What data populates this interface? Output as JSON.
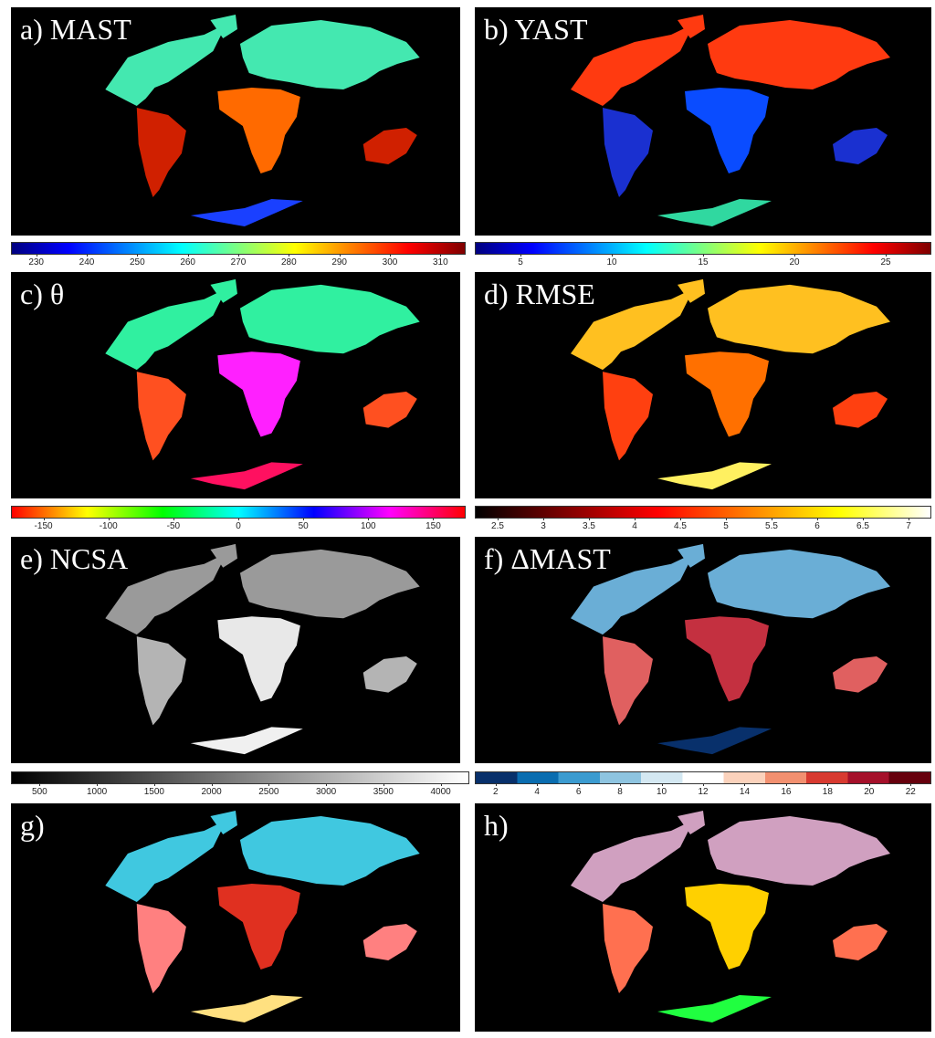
{
  "panels": [
    {
      "id": "a",
      "label": "a) MAST",
      "scheme": "jet-hot",
      "colors": {
        "north": "#44e8b0",
        "mid": "#ff6a00",
        "south": "#d02000",
        "antarctica": "#1a40ff"
      }
    },
    {
      "id": "b",
      "label": "b) YAST",
      "scheme": "jet-annual",
      "colors": {
        "north": "#ff3a10",
        "mid": "#0a4cff",
        "south": "#1a30d0",
        "antarctica": "#30d8a0"
      }
    },
    {
      "id": "c",
      "label": "c) θ",
      "scheme": "phase",
      "colors": {
        "north": "#30f0a0",
        "mid": "#ff20ff",
        "south": "#ff5020",
        "antarctica": "#ff1060"
      }
    },
    {
      "id": "d",
      "label": "d) RMSE",
      "scheme": "hot",
      "colors": {
        "north": "#ffc020",
        "mid": "#ff7000",
        "south": "#ff4010",
        "antarctica": "#fff060"
      }
    },
    {
      "id": "e",
      "label": "e) NCSA",
      "scheme": "gray",
      "colors": {
        "north": "#9a9a9a",
        "mid": "#e8e8e8",
        "south": "#b4b4b4",
        "antarctica": "#f0f0f0"
      }
    },
    {
      "id": "f",
      "label": "f) ΔMAST",
      "scheme": "diverging",
      "colors": {
        "north": "#6aaed6",
        "mid": "#c43040",
        "south": "#e06060",
        "antarctica": "#08306b"
      }
    },
    {
      "id": "g",
      "label": "g)",
      "scheme": "rgb-composite",
      "colors": {
        "north": "#40c8e0",
        "mid": "#e03020",
        "south": "#ff8080",
        "antarctica": "#ffe080"
      }
    },
    {
      "id": "h",
      "label": "h)",
      "scheme": "rgb-composite-2",
      "colors": {
        "north": "#d0a0c0",
        "mid": "#ffd000",
        "south": "#ff7050",
        "antarctica": "#20ff40"
      }
    }
  ],
  "colorbars": [
    {
      "id": "mast",
      "ticks": [
        "230",
        "240",
        "250",
        "260",
        "270",
        "280",
        "290",
        "300",
        "310"
      ],
      "stops": [
        "#00007f",
        "#0000ff",
        "#007fff",
        "#00ffff",
        "#7fff7f",
        "#ffff00",
        "#ff7f00",
        "#ff0000",
        "#7f0000"
      ]
    },
    {
      "id": "yast",
      "ticks": [
        "5",
        "10",
        "15",
        "20",
        "25"
      ],
      "stops": [
        "#00007f",
        "#0000ff",
        "#007fff",
        "#00ffff",
        "#7fff7f",
        "#ffff00",
        "#ff7f00",
        "#ff0000",
        "#7f0000"
      ]
    },
    {
      "id": "theta",
      "ticks": [
        "-150",
        "-100",
        "-50",
        "0",
        "50",
        "100",
        "150"
      ],
      "stops": [
        "#ff0000",
        "#ffff00",
        "#00ff00",
        "#00ffff",
        "#0000ff",
        "#ff00ff",
        "#ff0000"
      ]
    },
    {
      "id": "rmse",
      "ticks": [
        "2.5",
        "3",
        "3.5",
        "4",
        "4.5",
        "5",
        "5.5",
        "6",
        "6.5",
        "7"
      ],
      "stops": [
        "#000000",
        "#800000",
        "#ff0000",
        "#ff8000",
        "#ffff00",
        "#ffffff"
      ]
    },
    {
      "id": "ncsa",
      "ticks": [
        "500",
        "1000",
        "1500",
        "2000",
        "2500",
        "3000",
        "3500",
        "4000"
      ],
      "stops": [
        "#000000",
        "#ffffff"
      ]
    },
    {
      "id": "dmast",
      "ticks": [
        "2",
        "4",
        "6",
        "8",
        "10",
        "12",
        "14",
        "16",
        "18",
        "20",
        "22"
      ],
      "stops": [
        "#08306b",
        "#0a6db0",
        "#3b9bd0",
        "#8ec4e0",
        "#d4e8f2",
        "#ffffff",
        "#fbd2bc",
        "#f29070",
        "#d83a30",
        "#a5102a",
        "#67000d"
      ],
      "discrete": true
    }
  ]
}
